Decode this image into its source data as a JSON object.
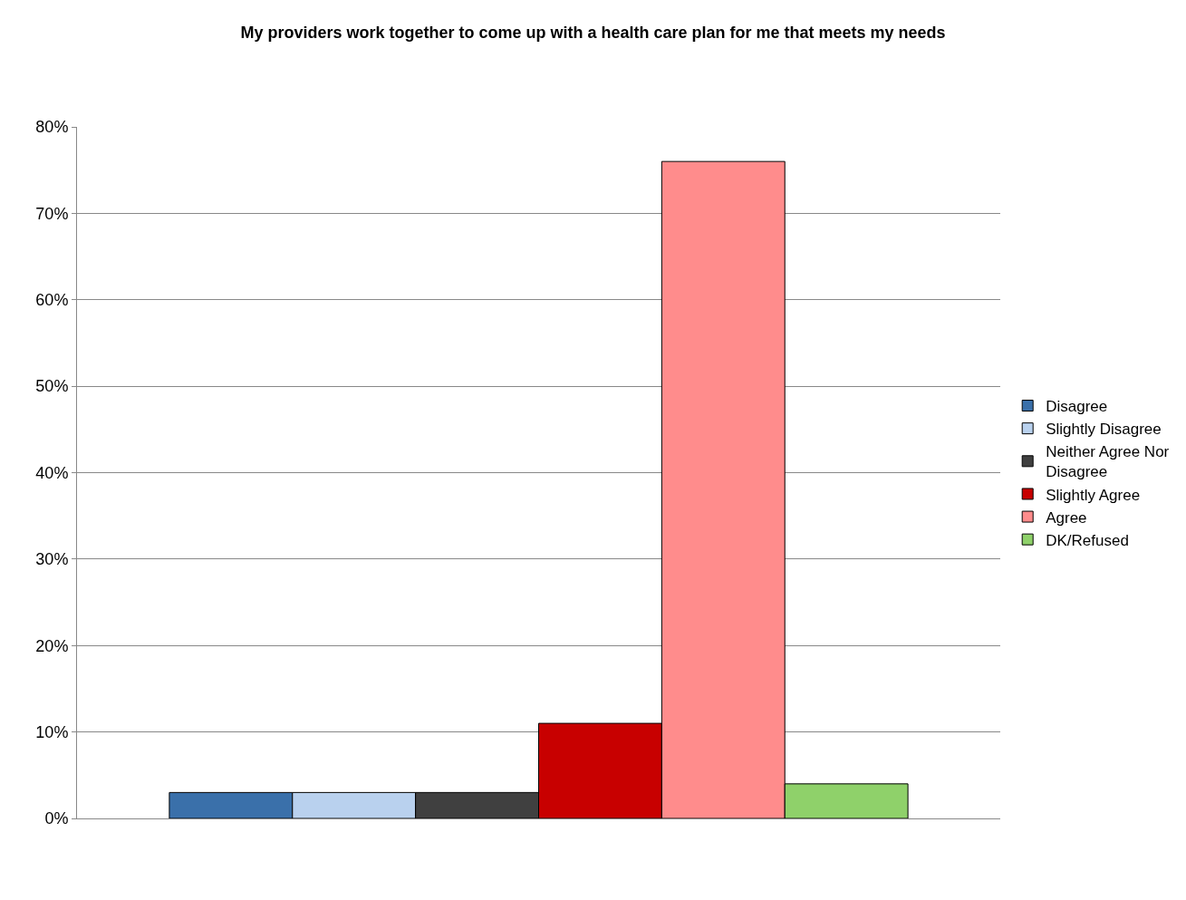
{
  "chart_data": {
    "type": "bar",
    "title": "My providers work together to come up with a health care plan for me that meets my needs",
    "categories": [
      null
    ],
    "series": [
      {
        "name": "Disagree",
        "color": "#3a70aa",
        "values": [
          3
        ]
      },
      {
        "name": "Slightly Disagree",
        "color": "#b9d1ee",
        "values": [
          3
        ]
      },
      {
        "name": "Neither Agree Nor Disagree",
        "color": "#404040",
        "values": [
          3
        ]
      },
      {
        "name": "Slightly Agree",
        "color": "#c80000",
        "values": [
          11
        ]
      },
      {
        "name": "Agree",
        "color": "#ff8c8c",
        "values": [
          76
        ]
      },
      {
        "name": "DK/Refused",
        "color": "#8fd16a",
        "values": [
          4
        ]
      }
    ],
    "ylim": [
      0,
      80
    ],
    "yticks": [
      {
        "value": 0,
        "label": "0%"
      },
      {
        "value": 10,
        "label": "10%"
      },
      {
        "value": 20,
        "label": "20%"
      },
      {
        "value": 30,
        "label": "30%"
      },
      {
        "value": 40,
        "label": "40%"
      },
      {
        "value": 50,
        "label": "50%"
      },
      {
        "value": 60,
        "label": "60%"
      },
      {
        "value": 70,
        "label": "70%"
      },
      {
        "value": 80,
        "label": "80%"
      }
    ],
    "grid": "y",
    "legend": "right"
  }
}
